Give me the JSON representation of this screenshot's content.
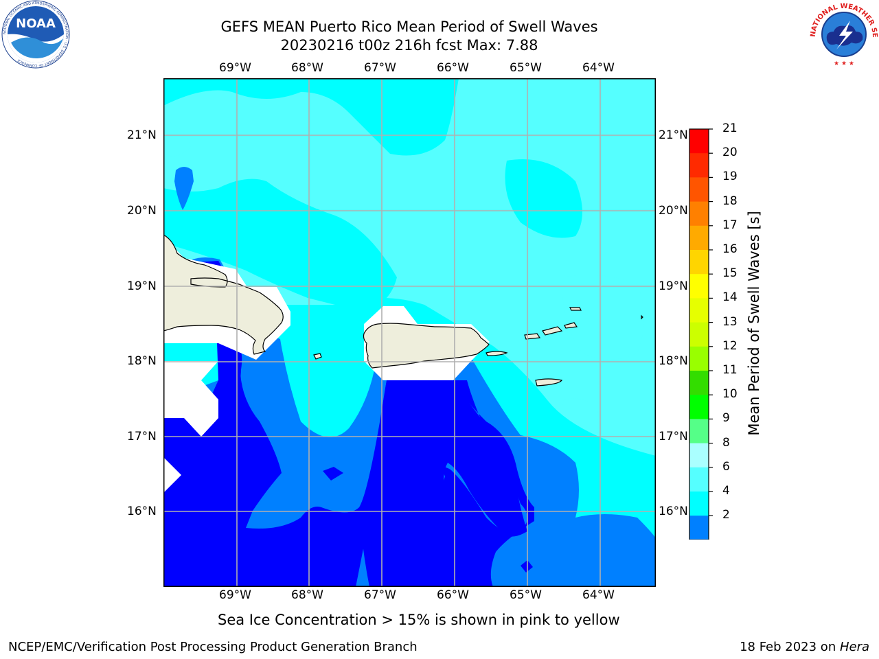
{
  "title": {
    "line1": "GEFS MEAN Puerto Rico Mean Period of Swell Waves",
    "line2": "20230216 t00z 216h fcst   Max: 7.88"
  },
  "axes": {
    "lon_labels": [
      "69°W",
      "68°W",
      "67°W",
      "66°W",
      "65°W",
      "64°W"
    ],
    "lat_labels": [
      "21°N",
      "20°N",
      "19°N",
      "18°N",
      "17°N",
      "16°N"
    ]
  },
  "colorbar": {
    "label": "Mean Period of Swell Waves [s]",
    "ticks": [
      "21",
      "20",
      "19",
      "18",
      "17",
      "16",
      "15",
      "14",
      "13",
      "12",
      "11",
      "10",
      "9",
      "8",
      "6",
      "4",
      "2"
    ],
    "colors": [
      "#ff0000",
      "#ff2a00",
      "#ff5500",
      "#ff8000",
      "#ffaa00",
      "#ffd500",
      "#ffff00",
      "#e6ff00",
      "#ccff00",
      "#99ff00",
      "#33dd00",
      "#00ff00",
      "#55ff88",
      "#aaffff",
      "#55ffff",
      "#00ffff",
      "#0080ff"
    ],
    "under_color": "#0000ff"
  },
  "map_colors": {
    "c6_8": "#55ffff",
    "c4_6": "#00ffff",
    "c2_4": "#0080ff",
    "under": "#0000ff",
    "land": "#eeeedc",
    "nodata": "#ffffff",
    "grid": "#b0b0b0"
  },
  "notes": {
    "sea_ice": "Sea Ice Concentration > 15% is shown in pink to yellow"
  },
  "footer": {
    "left": "NCEP/EMC/Verification Post Processing Product Generation Branch",
    "date": "18 Feb 2023 on ",
    "machine": "Hera"
  },
  "logos": {
    "noaa": {
      "text": "NOAA",
      "ring": "NATIONAL OCEANIC AND ATMOSPHERIC ADMINISTRATION · U.S. DEPARTMENT OF COMMERCE"
    },
    "nws": {
      "ring": "NATIONAL WEATHER SERVICE"
    }
  }
}
